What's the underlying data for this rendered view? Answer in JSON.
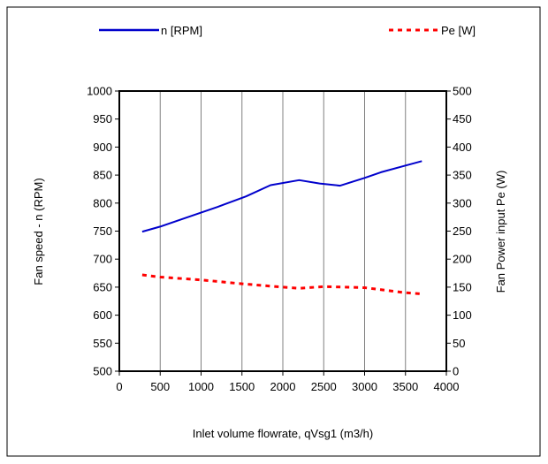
{
  "chart_data": {
    "type": "line",
    "title": "",
    "xlabel": "Inlet volume flowrate, qVsg1 (m3/h)",
    "ylabel": "Fan speed - n (RPM)",
    "y2label": "Fan Power input Pe (W)",
    "xlim": [
      0,
      4000
    ],
    "ylim": [
      500,
      1000
    ],
    "y2lim": [
      0,
      500
    ],
    "x_ticks": [
      0,
      500,
      1000,
      1500,
      2000,
      2500,
      3000,
      3500,
      4000
    ],
    "y_ticks": [
      500,
      550,
      600,
      650,
      700,
      750,
      800,
      850,
      900,
      950,
      1000
    ],
    "y2_ticks": [
      0,
      50,
      100,
      150,
      200,
      250,
      300,
      350,
      400,
      450,
      500
    ],
    "grid": "vertical",
    "legend_position": "top",
    "series": [
      {
        "name": "n  [RPM]",
        "axis": "left",
        "color": "#0000cc",
        "style": "solid",
        "x": [
          280,
          500,
          900,
          1200,
          1550,
          1850,
          2200,
          2450,
          2700,
          3000,
          3200,
          3500,
          3700
        ],
        "y": [
          749,
          758,
          778,
          793,
          812,
          832,
          841,
          835,
          831,
          845,
          855,
          867,
          875
        ]
      },
      {
        "name": "Pe [W]",
        "axis": "right",
        "color": "#ff0000",
        "style": "dashed",
        "x": [
          280,
          500,
          1000,
          1500,
          2000,
          2200,
          2500,
          3000,
          3500,
          3700
        ],
        "y": [
          172,
          168,
          163,
          156,
          150,
          148,
          151,
          149,
          140,
          138
        ]
      }
    ]
  }
}
